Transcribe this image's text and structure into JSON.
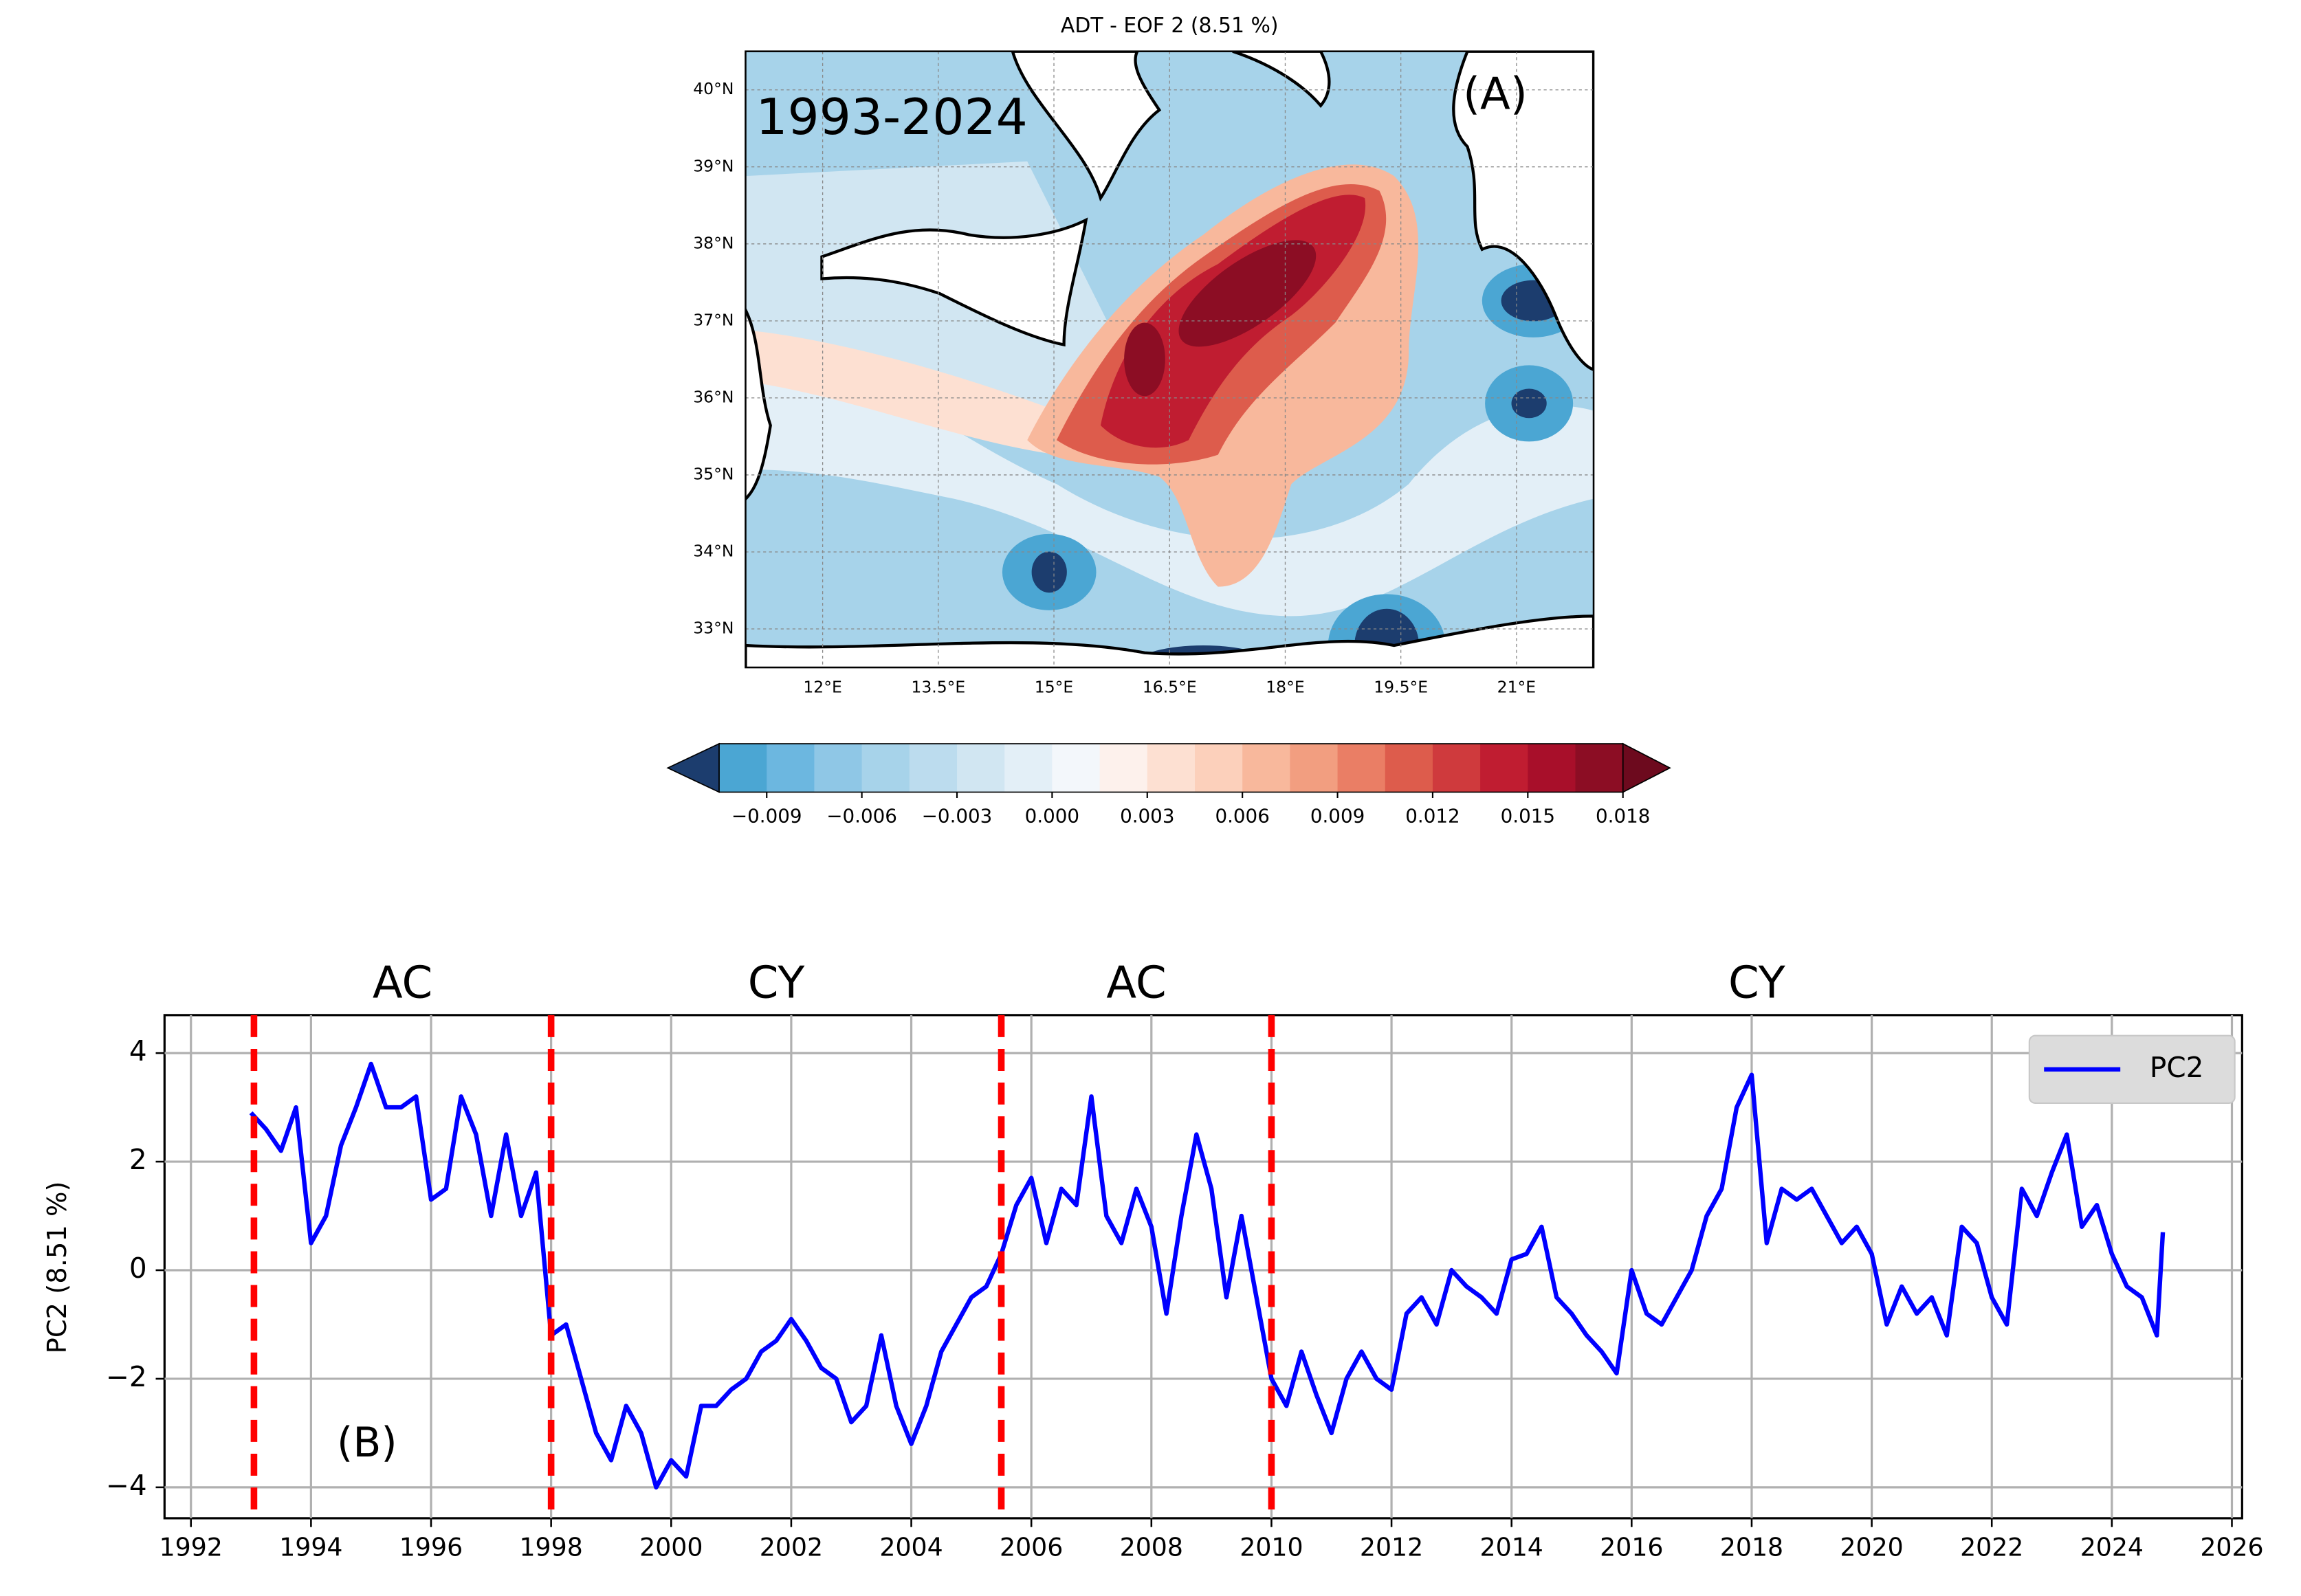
{
  "chart_data": [
    {
      "type": "map",
      "title": "ADT - EOF 2 (8.51 %)",
      "annotations": [
        "1993-2024",
        "(A)"
      ],
      "xlim": [
        11,
        22
      ],
      "ylim": [
        32.5,
        40.5
      ],
      "xticks": [
        {
          "value": 12,
          "label": "12°E"
        },
        {
          "value": 13.5,
          "label": "13.5°E"
        },
        {
          "value": 15,
          "label": "15°E"
        },
        {
          "value": 16.5,
          "label": "16.5°E"
        },
        {
          "value": 18,
          "label": "18°E"
        },
        {
          "value": 19.5,
          "label": "19.5°E"
        },
        {
          "value": 21,
          "label": "21°E"
        }
      ],
      "yticks": [
        {
          "value": 33,
          "label": "33°N"
        },
        {
          "value": 34,
          "label": "34°N"
        },
        {
          "value": 35,
          "label": "35°N"
        },
        {
          "value": 36,
          "label": "36°N"
        },
        {
          "value": 37,
          "label": "37°N"
        },
        {
          "value": 38,
          "label": "38°N"
        },
        {
          "value": 39,
          "label": "39°N"
        },
        {
          "value": 40,
          "label": "40°N"
        }
      ],
      "grid": true,
      "colorbar": {
        "levels": [
          -0.0105,
          -0.009,
          -0.0075,
          -0.006,
          -0.0045,
          -0.003,
          -0.0015,
          0,
          0.0015,
          0.003,
          0.0045,
          0.006,
          0.0075,
          0.009,
          0.0105,
          0.012,
          0.0135,
          0.015,
          0.0165,
          0.018
        ],
        "colors": [
          "#4ba6d3",
          "#6cb7e0",
          "#8fc7e6",
          "#a7d3ea",
          "#bcdcee",
          "#d1e6f2",
          "#e3eff7",
          "#f3f7fb",
          "#fdf1ec",
          "#fde0d2",
          "#fcd0bb",
          "#f8b89c",
          "#f29e80",
          "#ea7e65",
          "#dd5c4c",
          "#cf3a3d",
          "#c01d31",
          "#a80f2a",
          "#8c0d24"
        ],
        "extend_colors": [
          "#1c3d6e",
          "#6d0a1e"
        ],
        "ticks": [
          {
            "value": -0.009,
            "label": "−0.009"
          },
          {
            "value": -0.006,
            "label": "−0.006"
          },
          {
            "value": -0.003,
            "label": "−0.003"
          },
          {
            "value": 0,
            "label": "0.000"
          },
          0.003,
          0.006,
          0.009,
          0.012,
          0.015,
          0.018
        ]
      }
    },
    {
      "type": "line",
      "ylabel": "PC2 (8.51 %)",
      "annotation": "(B)",
      "x": [
        1993.0,
        1993.25,
        1993.5,
        1993.75,
        1994.0,
        1994.25,
        1994.5,
        1994.75,
        1995.0,
        1995.25,
        1995.5,
        1995.75,
        1996.0,
        1996.25,
        1996.5,
        1996.75,
        1997.0,
        1997.25,
        1997.5,
        1997.75,
        1998.0,
        1998.25,
        1998.5,
        1998.75,
        1999.0,
        1999.25,
        1999.5,
        1999.75,
        2000.0,
        2000.25,
        2000.5,
        2000.75,
        2001.0,
        2001.25,
        2001.5,
        2001.75,
        2002.0,
        2002.25,
        2002.5,
        2002.75,
        2003.0,
        2003.25,
        2003.5,
        2003.75,
        2004.0,
        2004.25,
        2004.5,
        2004.75,
        2005.0,
        2005.25,
        2005.5,
        2005.75,
        2006.0,
        2006.25,
        2006.5,
        2006.75,
        2007.0,
        2007.25,
        2007.5,
        2007.75,
        2008.0,
        2008.25,
        2008.5,
        2008.75,
        2009.0,
        2009.25,
        2009.5,
        2009.75,
        2010.0,
        2010.25,
        2010.5,
        2010.75,
        2011.0,
        2011.25,
        2011.5,
        2011.75,
        2012.0,
        2012.25,
        2012.5,
        2012.75,
        2013.0,
        2013.25,
        2013.5,
        2013.75,
        2014.0,
        2014.25,
        2014.5,
        2014.75,
        2015.0,
        2015.25,
        2015.5,
        2015.75,
        2016.0,
        2016.25,
        2016.5,
        2016.75,
        2017.0,
        2017.25,
        2017.5,
        2017.75,
        2018.0,
        2018.25,
        2018.5,
        2018.75,
        2019.0,
        2019.25,
        2019.5,
        2019.75,
        2020.0,
        2020.25,
        2020.5,
        2020.75,
        2021.0,
        2021.25,
        2021.5,
        2021.75,
        2022.0,
        2022.25,
        2022.5,
        2022.75,
        2023.0,
        2023.25,
        2023.5,
        2023.75,
        2024.0,
        2024.25,
        2024.5,
        2024.75,
        2024.85
      ],
      "series": [
        {
          "name": "PC2",
          "color": "#0000ff",
          "values": [
            2.9,
            2.6,
            2.2,
            3.0,
            0.5,
            1.0,
            2.3,
            3.0,
            3.8,
            3.0,
            3.0,
            3.2,
            1.3,
            1.5,
            3.2,
            2.5,
            1.0,
            2.5,
            1.0,
            1.8,
            -1.2,
            -1.0,
            -2.0,
            -3.0,
            -3.5,
            -2.5,
            -3.0,
            -4.0,
            -3.5,
            -3.8,
            -2.5,
            -2.5,
            -2.2,
            -2.0,
            -1.5,
            -1.3,
            -0.9,
            -1.3,
            -1.8,
            -2.0,
            -2.8,
            -2.5,
            -1.2,
            -2.5,
            -3.2,
            -2.5,
            -1.5,
            -1.0,
            -0.5,
            -0.3,
            0.3,
            1.2,
            1.7,
            0.5,
            1.5,
            1.2,
            3.2,
            1.0,
            0.5,
            1.5,
            0.8,
            -0.8,
            1.0,
            2.5,
            1.5,
            -0.5,
            1.0,
            -0.5,
            -2.0,
            -2.5,
            -1.5,
            -2.3,
            -3.0,
            -2.0,
            -1.5,
            -2.0,
            -2.2,
            -0.8,
            -0.5,
            -1.0,
            0.0,
            -0.3,
            -0.5,
            -0.8,
            0.2,
            0.3,
            0.8,
            -0.5,
            -0.8,
            -1.2,
            -1.5,
            -1.9,
            0.0,
            -0.8,
            -1.0,
            -0.5,
            0.0,
            1.0,
            1.5,
            3.0,
            3.6,
            0.5,
            1.5,
            1.3,
            1.5,
            1.0,
            0.5,
            0.8,
            0.3,
            -1.0,
            -0.3,
            -0.8,
            -0.5,
            -1.2,
            0.8,
            0.5,
            -0.5,
            -1.0,
            1.5,
            1.0,
            1.8,
            2.5,
            0.8,
            1.2,
            0.3,
            -0.3,
            -0.5,
            -1.2,
            0.7
          ]
        }
      ],
      "xlim": [
        1991.56,
        2026.17
      ],
      "ylim": [
        -4.57,
        4.7
      ],
      "xticks": [
        1992,
        1994,
        1996,
        1998,
        2000,
        2002,
        2004,
        2006,
        2008,
        2010,
        2012,
        2014,
        2016,
        2018,
        2020,
        2022,
        2024,
        2026
      ],
      "yticks": [
        {
          "value": -4,
          "label": "−4"
        },
        {
          "value": -2,
          "label": "−2"
        },
        0,
        2,
        4
      ],
      "grid": true,
      "legend": "upper right",
      "vlines": {
        "x": [
          1993.05,
          1998.0,
          2005.5,
          2010.0
        ],
        "color": "#ff0000"
      },
      "regions": [
        {
          "label": "AC",
          "start": 1993.05
        },
        {
          "label": "CY",
          "start": 1998.0
        },
        {
          "label": "AC",
          "start": 2005.5
        },
        {
          "label": "CY",
          "start": 2010.0
        }
      ]
    }
  ]
}
